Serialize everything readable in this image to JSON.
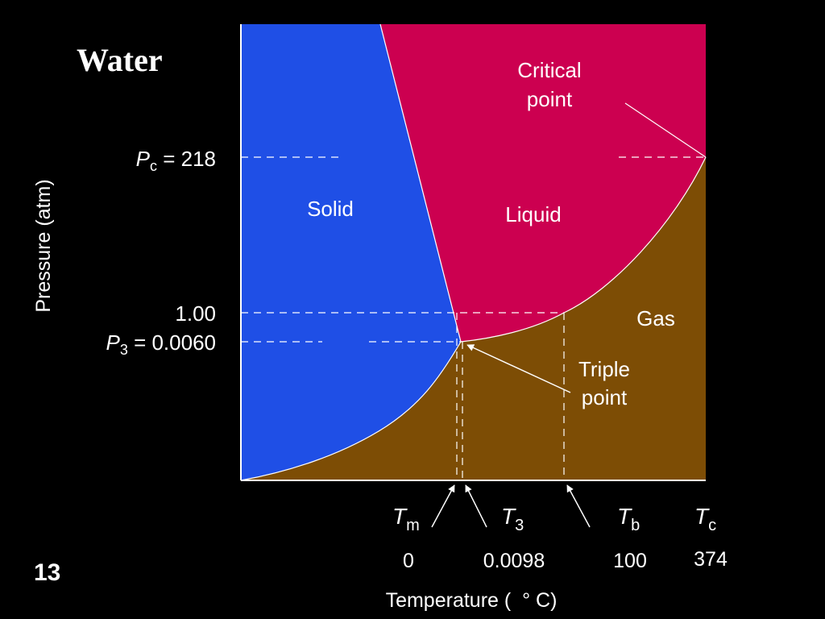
{
  "slide": {
    "title": "Water",
    "page_number": "13",
    "background_color": "#000000"
  },
  "diagram": {
    "region_colors": {
      "solid": "#1f4fe6",
      "liquid": "#cc0050",
      "gas": "#7d4d05"
    },
    "regions": {
      "solid": "Solid",
      "liquid": "Liquid",
      "gas": "Gas"
    },
    "annotations": {
      "critical_line1": "Critical",
      "critical_line2": "point",
      "triple_line1": "Triple",
      "triple_line2": "point"
    },
    "y_axis": {
      "label": "Pressure (atm)",
      "ticks": [
        {
          "symbol": "P",
          "sub": "c",
          "suffix": " = 218"
        },
        {
          "symbol": "",
          "sub": "",
          "suffix": "1.00"
        },
        {
          "symbol": "P",
          "sub": "3",
          "suffix": " = 0.0060"
        }
      ]
    },
    "x_axis": {
      "label": "Temperature (  ° C)",
      "symbols": [
        {
          "symbol": "T",
          "sub": "m",
          "value": "0"
        },
        {
          "symbol": "T",
          "sub": "3",
          "value": "0.0098"
        },
        {
          "symbol": "T",
          "sub": "b",
          "value": "100"
        },
        {
          "symbol": "T",
          "sub": "c",
          "value": "374"
        }
      ]
    }
  }
}
